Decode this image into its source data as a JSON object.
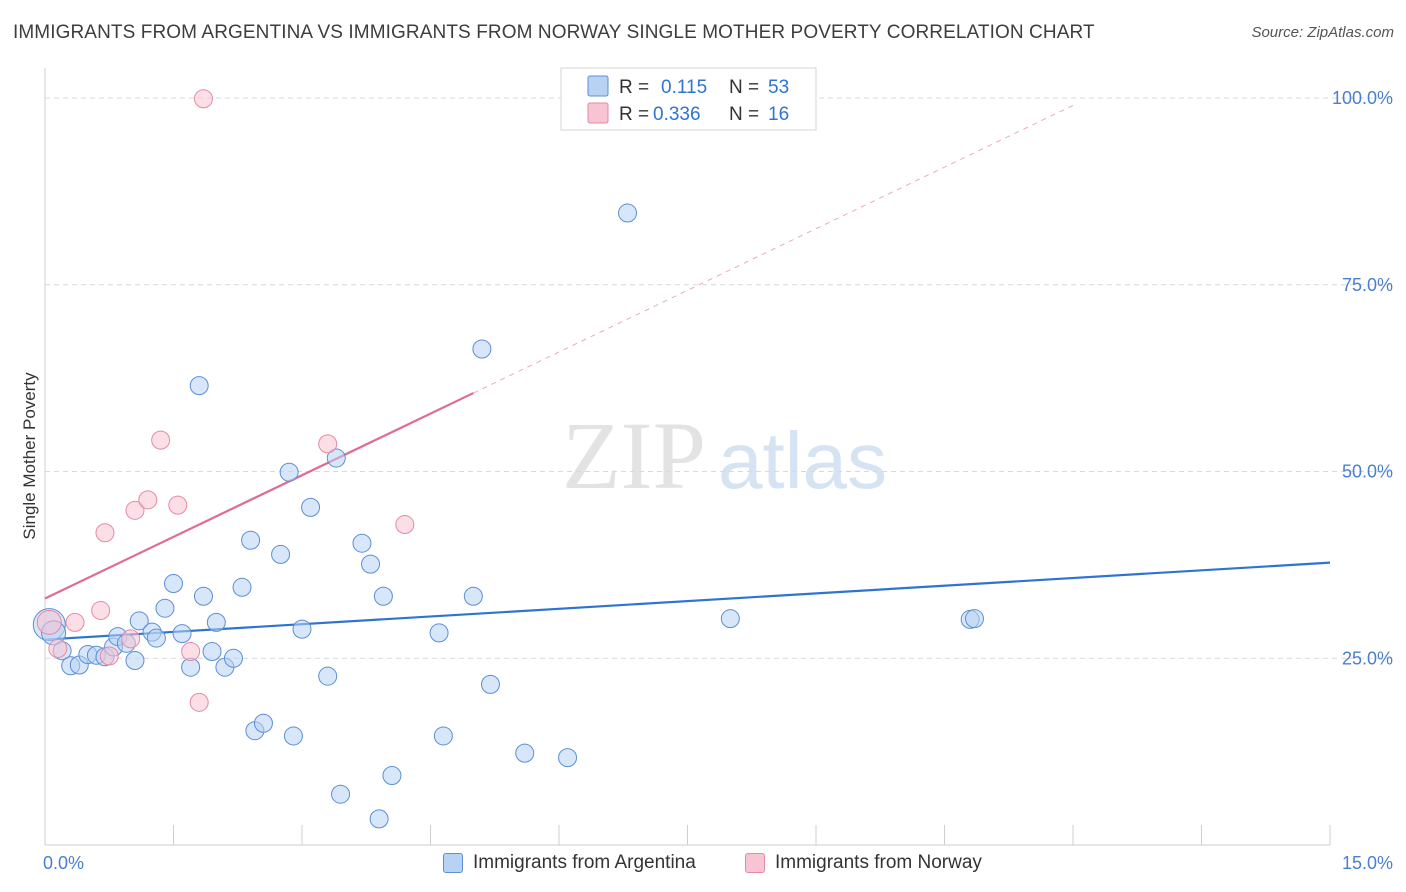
{
  "title": "IMMIGRANTS FROM ARGENTINA VS IMMIGRANTS FROM NORWAY SINGLE MOTHER POVERTY CORRELATION CHART",
  "source": "Source: ZipAtlas.com",
  "watermark": {
    "zip": "ZIP",
    "atlas": "atlas"
  },
  "colors": {
    "argentina_fill": "#b8d2f4",
    "argentina_stroke": "#5b8fd6",
    "argentina_line": "#2f74d0",
    "norway_fill": "#f8c3d2",
    "norway_stroke": "#e58aa6",
    "norway_line": "#e06b93",
    "axis_label": "#4a7fd0",
    "grid": "#d9d9d9"
  },
  "legend": {
    "rows": [
      {
        "r_label": "R =",
        "r_value": "0.115",
        "n_label": "N =",
        "n_value": "53"
      },
      {
        "r_label": "R =",
        "r_value": "0.336",
        "n_label": "N =",
        "n_value": "16"
      }
    ]
  },
  "bottom_legend": [
    {
      "label": "Immigrants from Argentina"
    },
    {
      "label": "Immigrants from Norway"
    }
  ],
  "chart_data": {
    "type": "scatter",
    "title": "IMMIGRANTS FROM ARGENTINA VS IMMIGRANTS FROM NORWAY SINGLE MOTHER POVERTY CORRELATION CHART",
    "xlabel": "",
    "ylabel": "Single Mother Poverty",
    "xlim": [
      0,
      15
    ],
    "ylim": [
      0,
      100
    ],
    "x_tick_labels": [
      {
        "value": 0,
        "label": "0.0%"
      },
      {
        "value": 15,
        "label": "15.0%"
      }
    ],
    "x_ticks": [
      0,
      1.5,
      3,
      4.5,
      6,
      7.5,
      9,
      10.5,
      12,
      13.5,
      15
    ],
    "y_ticks": [
      {
        "value": 25,
        "label": "25.0%"
      },
      {
        "value": 50,
        "label": "50.0%"
      },
      {
        "value": 75,
        "label": "75.0%"
      },
      {
        "value": 100,
        "label": "100.0%"
      }
    ],
    "grid": true,
    "legend_position": "top-center",
    "series": [
      {
        "name": "Immigrants from Argentina",
        "R": 0.115,
        "N": 53,
        "trend": {
          "x": [
            0,
            15
          ],
          "y": [
            27.5,
            37.8
          ],
          "dashed_extension": false
        },
        "points": [
          [
            0.05,
            29.5,
            16
          ],
          [
            0.1,
            28.4,
            12
          ],
          [
            0.2,
            26.0,
            9
          ],
          [
            0.3,
            24.0,
            9
          ],
          [
            0.4,
            24.1,
            9
          ],
          [
            0.5,
            25.5,
            9
          ],
          [
            0.6,
            25.4,
            9
          ],
          [
            0.7,
            25.2,
            9
          ],
          [
            0.8,
            26.5,
            9
          ],
          [
            0.85,
            27.9,
            9
          ],
          [
            0.95,
            27.0,
            9
          ],
          [
            1.05,
            24.7,
            9
          ],
          [
            1.1,
            30.0,
            9
          ],
          [
            1.25,
            28.5,
            9
          ],
          [
            1.3,
            27.7,
            9
          ],
          [
            1.4,
            31.7,
            9
          ],
          [
            1.5,
            35.0,
            9
          ],
          [
            1.6,
            28.3,
            9
          ],
          [
            1.7,
            23.8,
            9
          ],
          [
            1.8,
            61.5,
            9
          ],
          [
            1.85,
            33.3,
            9
          ],
          [
            1.95,
            25.9,
            9
          ],
          [
            2.0,
            29.8,
            9
          ],
          [
            2.1,
            23.8,
            9
          ],
          [
            2.2,
            25.0,
            9
          ],
          [
            2.3,
            34.5,
            9
          ],
          [
            2.4,
            40.8,
            9
          ],
          [
            2.45,
            15.3,
            9
          ],
          [
            2.55,
            16.3,
            9
          ],
          [
            2.75,
            38.9,
            9
          ],
          [
            2.85,
            49.9,
            9
          ],
          [
            2.9,
            14.6,
            9
          ],
          [
            3.0,
            28.9,
            9
          ],
          [
            3.1,
            45.2,
            9
          ],
          [
            3.3,
            22.6,
            9
          ],
          [
            3.4,
            51.8,
            9
          ],
          [
            3.45,
            6.8,
            9
          ],
          [
            3.7,
            40.4,
            9
          ],
          [
            3.8,
            37.6,
            9
          ],
          [
            3.9,
            3.5,
            9
          ],
          [
            3.95,
            33.3,
            9
          ],
          [
            4.05,
            9.3,
            9
          ],
          [
            4.6,
            28.4,
            9
          ],
          [
            4.65,
            14.6,
            9
          ],
          [
            5.0,
            33.3,
            9
          ],
          [
            5.1,
            66.4,
            9
          ],
          [
            5.2,
            21.5,
            9
          ],
          [
            5.6,
            12.3,
            9
          ],
          [
            6.1,
            11.7,
            9
          ],
          [
            6.8,
            84.6,
            9
          ],
          [
            8.0,
            30.3,
            9
          ],
          [
            10.8,
            30.2,
            9
          ],
          [
            10.85,
            30.3,
            9
          ]
        ]
      },
      {
        "name": "Immigrants from Norway",
        "R": 0.336,
        "N": 16,
        "trend": {
          "x": [
            0,
            5.0
          ],
          "y": [
            33.0,
            60.5
          ],
          "dashed_extension_to": [
            12.0,
            99.0
          ]
        },
        "points": [
          [
            0.05,
            29.8,
            12
          ],
          [
            0.15,
            26.3,
            9
          ],
          [
            0.35,
            29.8,
            9
          ],
          [
            0.65,
            31.4,
            9
          ],
          [
            0.75,
            25.3,
            9
          ],
          [
            0.7,
            41.8,
            9
          ],
          [
            1.0,
            27.6,
            9
          ],
          [
            1.05,
            44.8,
            9
          ],
          [
            1.2,
            46.2,
            9
          ],
          [
            1.35,
            54.2,
            9
          ],
          [
            1.55,
            45.5,
            9
          ],
          [
            1.7,
            25.9,
            9
          ],
          [
            1.8,
            19.1,
            9
          ],
          [
            1.85,
            99.9,
            9
          ],
          [
            3.3,
            53.7,
            9
          ],
          [
            4.2,
            42.9,
            9
          ]
        ]
      }
    ]
  }
}
